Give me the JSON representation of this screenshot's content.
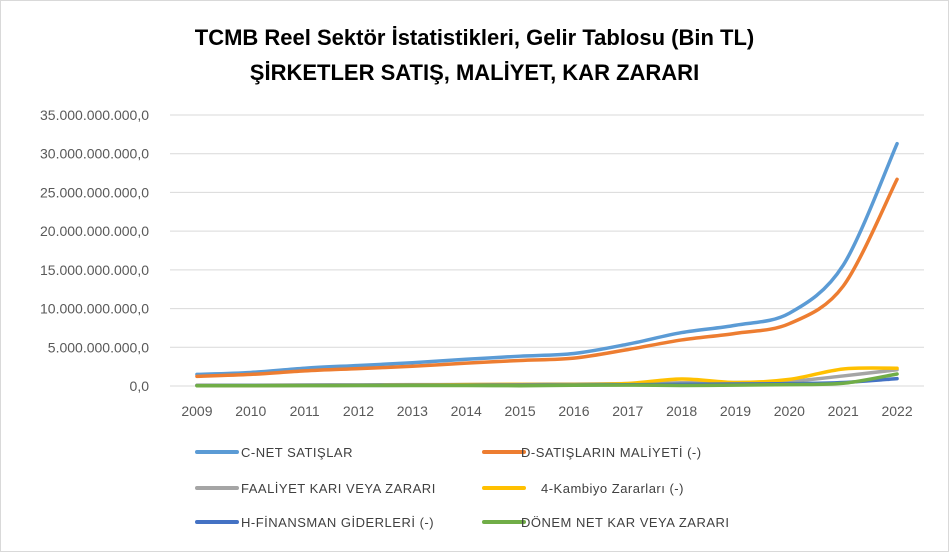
{
  "chart_data": {
    "type": "line",
    "title": "TCMB Reel Sektör İstatistikleri, Gelir Tablosu (Bin TL)",
    "subtitle": "ŞİRKETLER SATIŞ, MALİYET, KAR ZARARI",
    "xlabel": "",
    "ylabel": "",
    "ylim": [
      0,
      35000000000
    ],
    "grid": true,
    "legend_position": "bottom",
    "y_ticks": [
      0,
      5000000000,
      10000000000,
      15000000000,
      20000000000,
      25000000000,
      30000000000,
      35000000000
    ],
    "y_tick_labels": [
      "0,0",
      "5.000.000.000,0",
      "10.000.000.000,0",
      "15.000.000.000,0",
      "20.000.000.000,0",
      "25.000.000.000,0",
      "30.000.000.000,0",
      "35.000.000.000,0"
    ],
    "categories": [
      "2009",
      "2010",
      "2011",
      "2012",
      "2013",
      "2014",
      "2015",
      "2016",
      "2017",
      "2018",
      "2019",
      "2020",
      "2021",
      "2022"
    ],
    "series": [
      {
        "name": "C-NET SATIŞLAR",
        "color": "#5B9BD5",
        "values": [
          1500000000,
          1750000000,
          2300000000,
          2650000000,
          3000000000,
          3450000000,
          3850000000,
          4200000000,
          5400000000,
          6900000000,
          7850000000,
          9400000000,
          15600000000,
          31300000000
        ]
      },
      {
        "name": "D-SATIŞLARIN MALİYETİ  (-)",
        "color": "#ED7D31",
        "values": [
          1250000000,
          1500000000,
          1950000000,
          2250000000,
          2550000000,
          2950000000,
          3300000000,
          3600000000,
          4700000000,
          5950000000,
          6800000000,
          8050000000,
          12900000000,
          26700000000
        ]
      },
      {
        "name": "FAALİYET KARI VEYA ZARARI",
        "color": "#A5A5A5",
        "values": [
          90000000,
          100000000,
          130000000,
          150000000,
          170000000,
          190000000,
          230000000,
          250000000,
          300000000,
          420000000,
          460000000,
          600000000,
          1300000000,
          2100000000
        ]
      },
      {
        "name": "4-Kambiyo Zararları (-)",
        "color": "#FFC000",
        "values": [
          60000000,
          30000000,
          100000000,
          90000000,
          130000000,
          170000000,
          210000000,
          190000000,
          320000000,
          900000000,
          450000000,
          850000000,
          2200000000,
          2300000000
        ]
      },
      {
        "name": "H-FİNANSMAN  GİDERLERİ  (-)",
        "color": "#4472C4",
        "values": [
          60000000,
          60000000,
          80000000,
          80000000,
          90000000,
          100000000,
          120000000,
          130000000,
          160000000,
          230000000,
          260000000,
          300000000,
          450000000,
          950000000
        ]
      },
      {
        "name": "DÖNEM NET KAR VEYA ZARARI",
        "color": "#70AD47",
        "values": [
          30000000,
          50000000,
          50000000,
          60000000,
          70000000,
          60000000,
          40000000,
          90000000,
          120000000,
          60000000,
          110000000,
          180000000,
          350000000,
          1550000000
        ]
      }
    ]
  }
}
